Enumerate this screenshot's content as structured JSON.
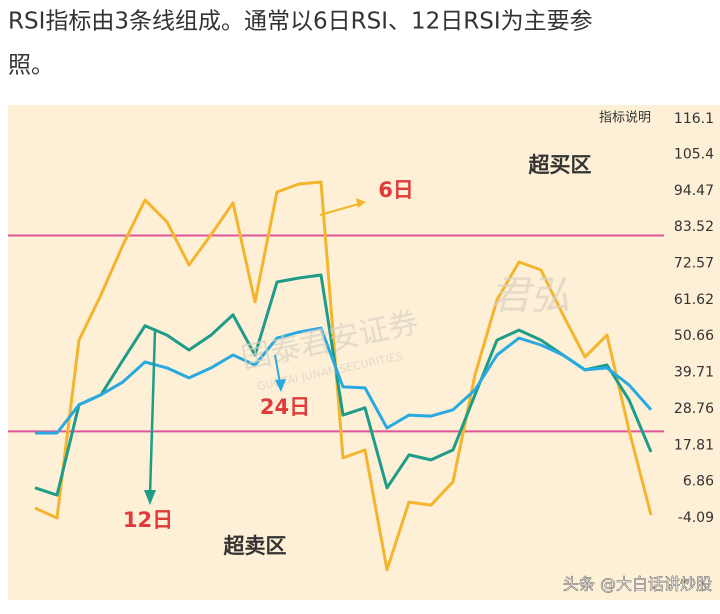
{
  "intro_lines": [
    "RSI指标由3条线组成。通常以6日RSI、12日RSI为主要参",
    "照。"
  ],
  "chart_data": {
    "type": "line",
    "corner_label": "指标说明",
    "zones": {
      "overbought": "超买区",
      "oversold": "超卖区"
    },
    "levels": [
      {
        "value": 81,
        "color": "#e0559a"
      },
      {
        "value": 22,
        "color": "#e0559a"
      }
    ],
    "watermark": {
      "brand": "国泰君安证券",
      "brand_en": "GUOTAI JUNAN SECURITIES",
      "seal": "君弘"
    },
    "credit": "头条 @大白话讲炒股",
    "categories": [
      null,
      null,
      null,
      null,
      null,
      null,
      null,
      null,
      null,
      null,
      null,
      null,
      null,
      null,
      null,
      null,
      null,
      null,
      null,
      null,
      null,
      null,
      null,
      null,
      null,
      null,
      null,
      null,
      null
    ],
    "series": [
      {
        "name": "6日",
        "color": "#f4b52e",
        "values": [
          -1.1,
          -4.1,
          49.5,
          63.1,
          78.2,
          91.7,
          85.1,
          72.1,
          81.2,
          90.8,
          61.0,
          94.1,
          96.5,
          97.1,
          14.0,
          16.4,
          -19.7,
          0.7,
          -0.2,
          6.8,
          39.0,
          61.6,
          73.0,
          70.6,
          57.1,
          44.4,
          51.0,
          22.4,
          -3.2
        ]
      },
      {
        "name": "12日",
        "color": "#1e9c88",
        "values": [
          5.0,
          2.8,
          30.0,
          33.0,
          43.5,
          53.8,
          51.0,
          46.5,
          51.0,
          57.1,
          45.0,
          67.0,
          68.2,
          69.1,
          26.9,
          29.1,
          5.0,
          14.9,
          13.4,
          16.4,
          33.0,
          49.5,
          52.5,
          49.5,
          45.0,
          40.5,
          42.0,
          31.5,
          15.8
        ]
      },
      {
        "name": "24日",
        "color": "#2aa9e0",
        "values": [
          21.5,
          21.5,
          30.0,
          33.0,
          36.9,
          42.9,
          41.1,
          38.1,
          41.1,
          45.0,
          42.0,
          50.1,
          51.9,
          53.1,
          35.4,
          35.1,
          23.0,
          26.9,
          26.6,
          28.5,
          34.5,
          45.0,
          50.1,
          48.0,
          45.0,
          40.5,
          41.1,
          36.0,
          28.5
        ]
      }
    ],
    "ylim": [
      -28.8,
      119.4
    ],
    "yticks": [
      116.1,
      105.4,
      94.47,
      83.52,
      72.57,
      61.62,
      50.66,
      39.71,
      28.76,
      17.81,
      6.86,
      -4.09
    ]
  }
}
